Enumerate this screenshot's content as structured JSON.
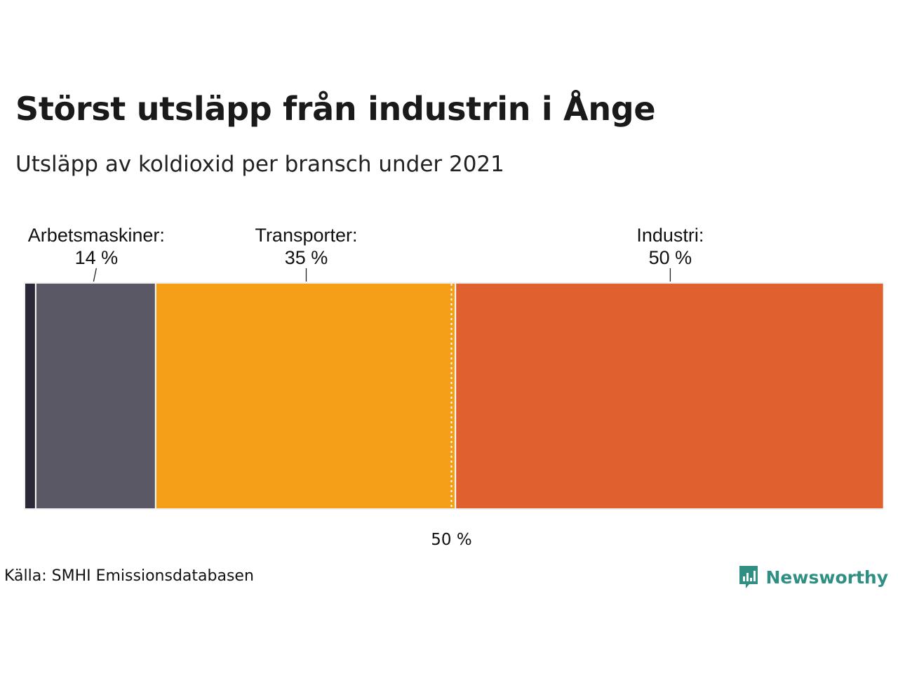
{
  "header": {
    "title": "Störst utsläpp från industrin i Ånge",
    "subtitle": "Utsläpp av koldioxid per bransch under 2021"
  },
  "chart_data": {
    "type": "bar",
    "orientation": "horizontal-stacked-100",
    "segments": [
      {
        "name": "",
        "value": 1.3,
        "color": "#2b2838",
        "label": ""
      },
      {
        "name": "Arbetsmaskiner:",
        "value": 14,
        "color": "#5b5866",
        "label": "14 %"
      },
      {
        "name": "Transporter:",
        "value": 35,
        "color": "#f59e18",
        "label": "35 %"
      },
      {
        "name": "Industri:",
        "value": 50,
        "color": "#e0602f",
        "label": "50 %"
      }
    ],
    "reference_line": {
      "value": 50,
      "label": "50 %"
    },
    "xlim": [
      0,
      100
    ]
  },
  "footer": {
    "source": "Källa: SMHI Emissionsdatabasen",
    "logo_text": "Newsworthy",
    "logo_icon": "bar-chart-speech-bubble-icon",
    "logo_color": "#2f8f82"
  }
}
